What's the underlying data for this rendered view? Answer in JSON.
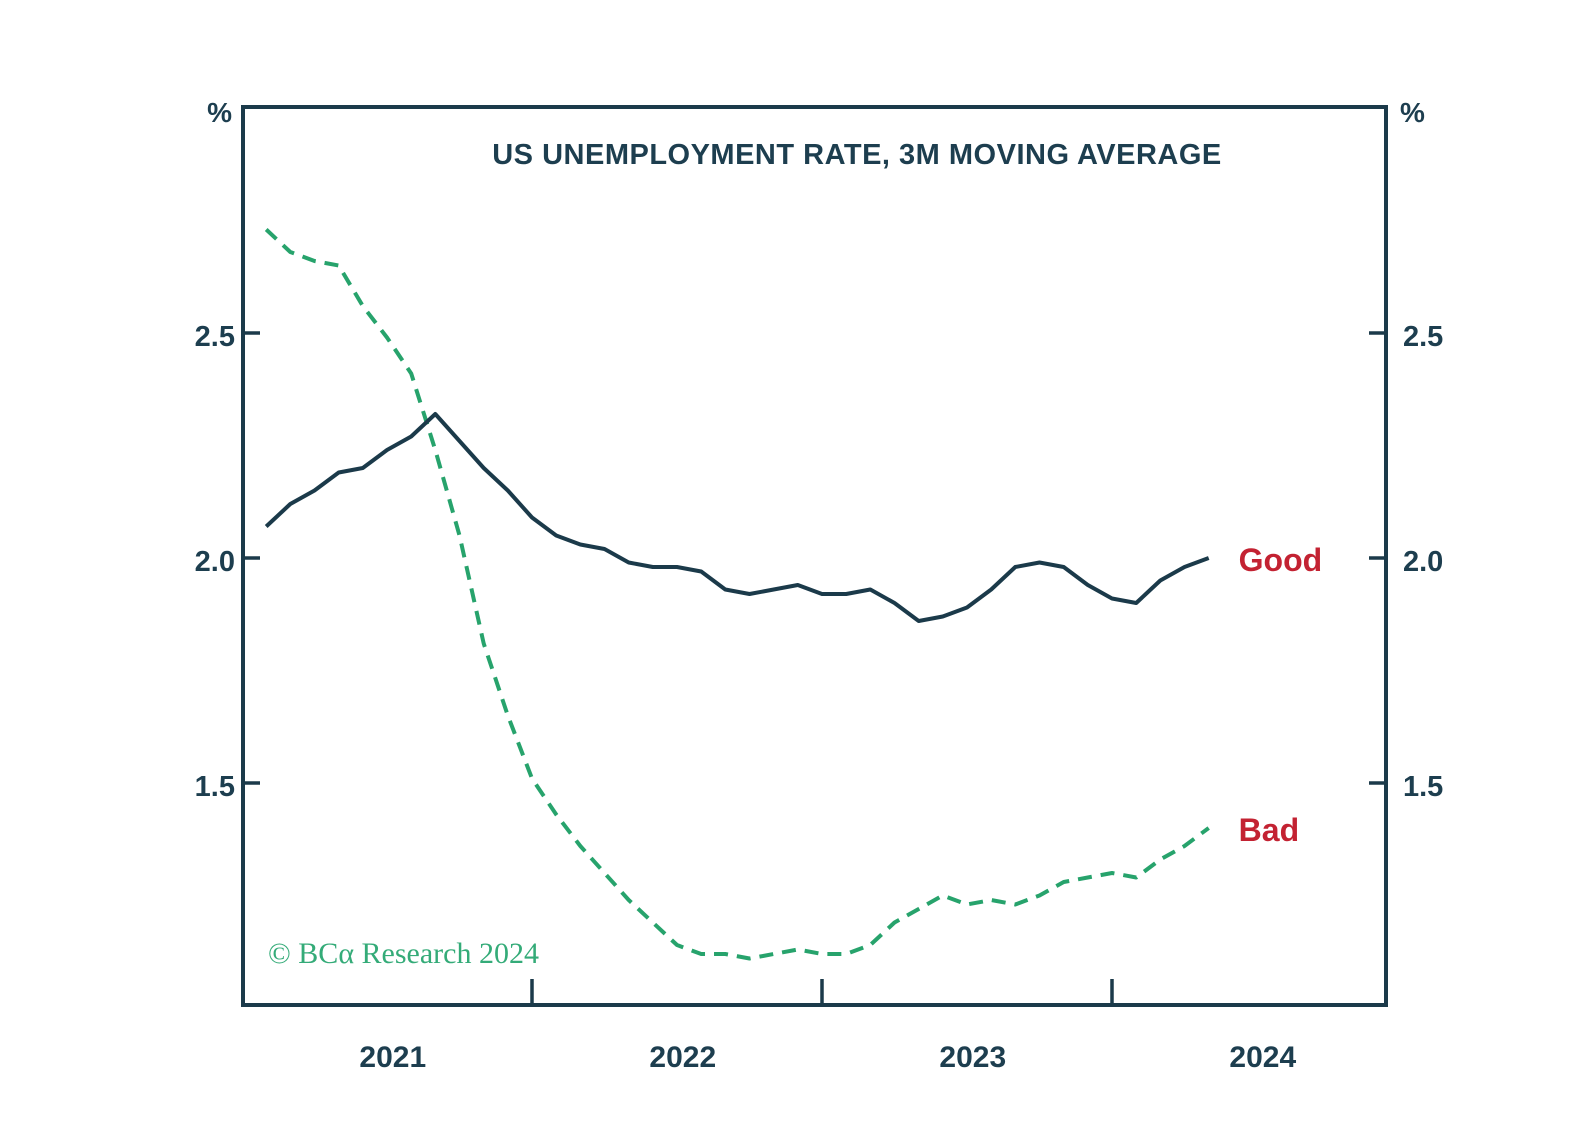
{
  "colors": {
    "dark_line": "#1B3A4A",
    "dark_text": "#1D3E4F",
    "green_line": "#27A36C",
    "red_label": "#C32232",
    "copyright_green": "#34AB78",
    "background": "#FFFFFF"
  },
  "annotations": {
    "copyright": "© BCα Research 2024"
  },
  "chart_data": {
    "type": "line",
    "title": "US UNEMPLOYMENT RATE, 3M MOVING AVERAGE",
    "unit_label": "%",
    "grid": false,
    "legend_position": "end-of-line labels",
    "x": [
      "2021-02",
      "2021-03",
      "2021-04",
      "2021-05",
      "2021-06",
      "2021-07",
      "2021-08",
      "2021-09",
      "2021-10",
      "2021-11",
      "2021-12",
      "2022-01",
      "2022-02",
      "2022-03",
      "2022-04",
      "2022-05",
      "2022-06",
      "2022-07",
      "2022-08",
      "2022-09",
      "2022-10",
      "2022-11",
      "2022-12",
      "2023-01",
      "2023-02",
      "2023-03",
      "2023-04",
      "2023-05",
      "2023-06",
      "2023-07",
      "2023-08",
      "2023-09",
      "2023-10",
      "2023-11",
      "2023-12",
      "2024-01",
      "2024-02",
      "2024-03",
      "2024-04",
      "2024-05"
    ],
    "series": [
      {
        "name": "Good",
        "style": "solid",
        "color": "#1B3A4A",
        "label_color": "#C32232",
        "values": [
          2.07,
          2.12,
          2.15,
          2.19,
          2.2,
          2.24,
          2.27,
          2.32,
          2.26,
          2.2,
          2.15,
          2.09,
          2.05,
          2.03,
          2.02,
          1.99,
          1.98,
          1.98,
          1.97,
          1.93,
          1.92,
          1.93,
          1.94,
          1.92,
          1.92,
          1.93,
          1.9,
          1.86,
          1.87,
          1.89,
          1.93,
          1.98,
          1.99,
          1.98,
          1.94,
          1.91,
          1.9,
          1.95,
          1.98,
          2.0
        ]
      },
      {
        "name": "Bad",
        "style": "dashed",
        "color": "#27A36C",
        "label_color": "#C32232",
        "values": [
          2.73,
          2.68,
          2.66,
          2.65,
          2.56,
          2.49,
          2.41,
          2.24,
          2.05,
          1.81,
          1.65,
          1.51,
          1.43,
          1.36,
          1.3,
          1.24,
          1.19,
          1.14,
          1.12,
          1.12,
          1.11,
          1.12,
          1.13,
          1.12,
          1.12,
          1.14,
          1.19,
          1.22,
          1.25,
          1.23,
          1.24,
          1.23,
          1.25,
          1.28,
          1.29,
          1.3,
          1.29,
          1.33,
          1.36,
          1.4
        ]
      }
    ],
    "y_axis": {
      "ticks": [
        2.5,
        2.0,
        1.5
      ],
      "tick_labels": [
        "2.5",
        "2.0",
        "1.5"
      ],
      "range": [
        1.0,
        3.0
      ],
      "sides": "both"
    },
    "x_axis": {
      "year_labels": [
        "2021",
        "2022",
        "2023",
        "2024"
      ],
      "boundary_tick_years": [
        2022,
        2023,
        2024
      ],
      "range": [
        "2021-01",
        "2024-12"
      ]
    }
  }
}
